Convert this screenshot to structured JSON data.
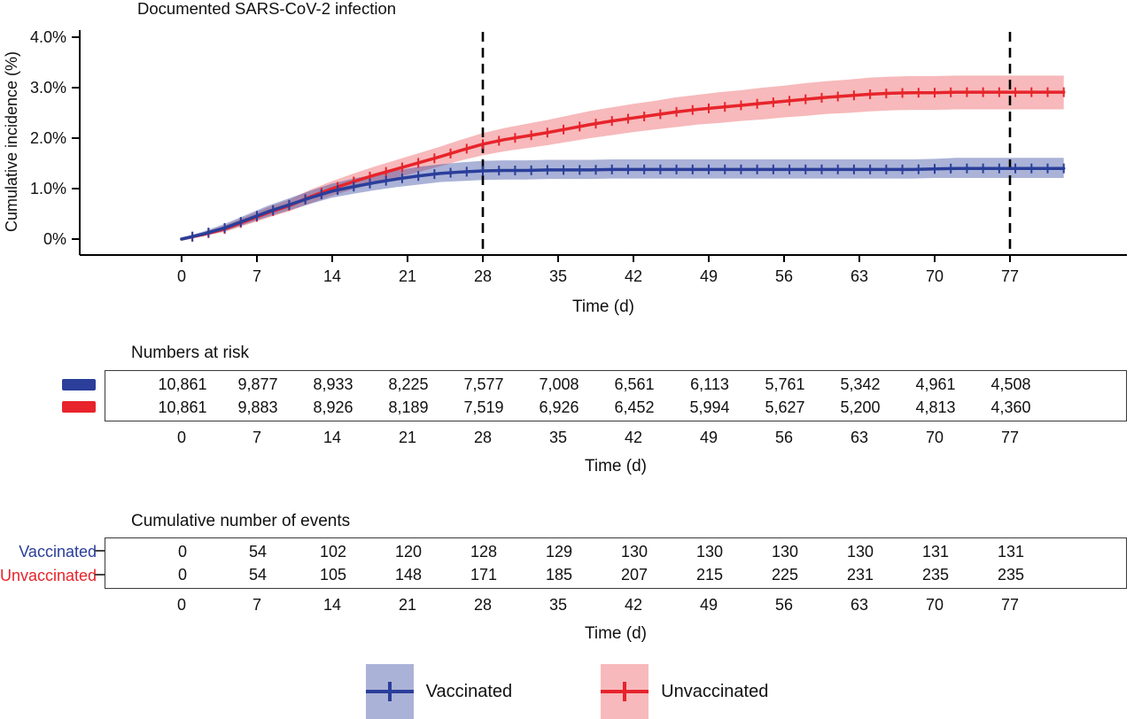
{
  "colors": {
    "vaccinated": "#2a3e9a",
    "vaccinated_band": "rgba(42,62,154,0.40)",
    "unvaccinated": "#e7242b",
    "unvaccinated_band": "rgba(231,36,43,0.32)",
    "axis": "#000000"
  },
  "chart_data": {
    "type": "line",
    "title": "Documented SARS-CoV-2 infection",
    "xlabel": "Time (d)",
    "ylabel": "Cumulative incidence (%)",
    "xlim": [
      0,
      82
    ],
    "ylim": [
      0,
      4
    ],
    "grid": false,
    "legend_position": "bottom",
    "x_ticks": [
      0,
      7,
      14,
      21,
      28,
      35,
      42,
      49,
      56,
      63,
      70,
      77
    ],
    "y_ticks": [
      0,
      1,
      2,
      3,
      4
    ],
    "y_tick_labels": [
      "0%",
      "1.0%",
      "2.0%",
      "3.0%",
      "4.0%"
    ],
    "vlines": [
      28,
      77
    ],
    "x": [
      0,
      2,
      4,
      6,
      8,
      10,
      12,
      14,
      16,
      18,
      20,
      22,
      24,
      26,
      28,
      30,
      32,
      34,
      36,
      38,
      40,
      42,
      44,
      46,
      48,
      50,
      52,
      54,
      56,
      58,
      60,
      62,
      64,
      66,
      68,
      70,
      72,
      74,
      76,
      78,
      80,
      82
    ],
    "series": [
      {
        "name": "Vaccinated",
        "color_key": "vaccinated",
        "values": [
          0.0,
          0.1,
          0.22,
          0.38,
          0.54,
          0.68,
          0.82,
          0.95,
          1.04,
          1.12,
          1.19,
          1.25,
          1.3,
          1.33,
          1.35,
          1.36,
          1.36,
          1.37,
          1.37,
          1.37,
          1.38,
          1.38,
          1.38,
          1.38,
          1.38,
          1.38,
          1.38,
          1.38,
          1.38,
          1.38,
          1.38,
          1.38,
          1.38,
          1.38,
          1.38,
          1.39,
          1.4,
          1.4,
          1.4,
          1.4,
          1.4,
          1.4
        ],
        "lower": [
          0.0,
          0.06,
          0.16,
          0.3,
          0.44,
          0.57,
          0.7,
          0.82,
          0.9,
          0.97,
          1.03,
          1.08,
          1.13,
          1.15,
          1.17,
          1.18,
          1.18,
          1.19,
          1.19,
          1.19,
          1.2,
          1.2,
          1.2,
          1.2,
          1.2,
          1.2,
          1.2,
          1.2,
          1.2,
          1.2,
          1.2,
          1.2,
          1.2,
          1.2,
          1.2,
          1.21,
          1.21,
          1.21,
          1.21,
          1.21,
          1.21,
          1.21
        ],
        "upper": [
          0.02,
          0.15,
          0.3,
          0.48,
          0.66,
          0.81,
          0.96,
          1.1,
          1.2,
          1.28,
          1.36,
          1.43,
          1.48,
          1.52,
          1.55,
          1.56,
          1.56,
          1.57,
          1.57,
          1.57,
          1.58,
          1.58,
          1.58,
          1.58,
          1.58,
          1.58,
          1.58,
          1.58,
          1.58,
          1.58,
          1.58,
          1.58,
          1.58,
          1.58,
          1.58,
          1.59,
          1.61,
          1.61,
          1.61,
          1.61,
          1.61,
          1.61
        ]
      },
      {
        "name": "Unvaccinated",
        "color_key": "unvaccinated",
        "values": [
          0.0,
          0.09,
          0.2,
          0.36,
          0.52,
          0.66,
          0.84,
          1.0,
          1.14,
          1.27,
          1.39,
          1.51,
          1.63,
          1.76,
          1.88,
          1.97,
          2.04,
          2.11,
          2.19,
          2.27,
          2.34,
          2.4,
          2.46,
          2.52,
          2.57,
          2.61,
          2.65,
          2.69,
          2.73,
          2.77,
          2.81,
          2.84,
          2.87,
          2.89,
          2.9,
          2.9,
          2.91,
          2.91,
          2.91,
          2.91,
          2.91,
          2.91
        ],
        "lower": [
          0.0,
          0.06,
          0.14,
          0.28,
          0.42,
          0.55,
          0.71,
          0.86,
          0.99,
          1.11,
          1.22,
          1.33,
          1.44,
          1.56,
          1.66,
          1.74,
          1.8,
          1.86,
          1.93,
          2.0,
          2.06,
          2.12,
          2.17,
          2.22,
          2.27,
          2.3,
          2.34,
          2.37,
          2.41,
          2.44,
          2.48,
          2.5,
          2.53,
          2.55,
          2.56,
          2.56,
          2.57,
          2.57,
          2.57,
          2.57,
          2.57,
          2.57
        ],
        "upper": [
          0.02,
          0.13,
          0.27,
          0.45,
          0.63,
          0.78,
          0.98,
          1.15,
          1.3,
          1.44,
          1.57,
          1.7,
          1.83,
          1.97,
          2.1,
          2.2,
          2.28,
          2.36,
          2.45,
          2.54,
          2.61,
          2.68,
          2.74,
          2.81,
          2.86,
          2.91,
          2.95,
          3.0,
          3.04,
          3.09,
          3.13,
          3.16,
          3.2,
          3.22,
          3.23,
          3.23,
          3.24,
          3.24,
          3.24,
          3.24,
          3.24,
          3.24
        ]
      }
    ]
  },
  "risk_table": {
    "header": "Numbers at risk",
    "xlabel": "Time (d)",
    "ticks": [
      "0",
      "7",
      "14",
      "21",
      "28",
      "35",
      "42",
      "49",
      "56",
      "63",
      "70",
      "77"
    ],
    "rows": [
      {
        "name": "Vaccinated",
        "color_key": "vaccinated",
        "values": [
          "10,861",
          "9,877",
          "8,933",
          "8,225",
          "7,577",
          "7,008",
          "6,561",
          "6,113",
          "5,761",
          "5,342",
          "4,961",
          "4,508"
        ]
      },
      {
        "name": "Unvaccinated",
        "color_key": "unvaccinated",
        "values": [
          "10,861",
          "9,883",
          "8,926",
          "8,189",
          "7,519",
          "6,926",
          "6,452",
          "5,994",
          "5,627",
          "5,200",
          "4,813",
          "4,360"
        ]
      }
    ]
  },
  "events_table": {
    "header": "Cumulative number of events",
    "xlabel": "Time (d)",
    "ticks": [
      "0",
      "7",
      "14",
      "21",
      "28",
      "35",
      "42",
      "49",
      "56",
      "63",
      "70",
      "77"
    ],
    "rows": [
      {
        "name": "Vaccinated",
        "color_key": "vaccinated",
        "values": [
          "0",
          "54",
          "102",
          "120",
          "128",
          "129",
          "130",
          "130",
          "130",
          "130",
          "131",
          "131"
        ]
      },
      {
        "name": "Unvaccinated",
        "color_key": "unvaccinated",
        "values": [
          "0",
          "54",
          "105",
          "148",
          "171",
          "185",
          "207",
          "215",
          "225",
          "231",
          "235",
          "235"
        ]
      }
    ]
  },
  "legend": {
    "items": [
      {
        "label": "Vaccinated",
        "color_key": "vaccinated"
      },
      {
        "label": "Unvaccinated",
        "color_key": "unvaccinated"
      }
    ]
  }
}
